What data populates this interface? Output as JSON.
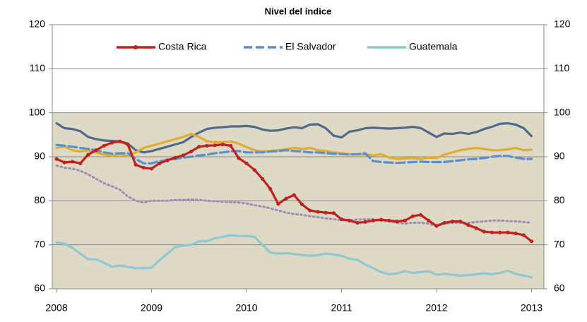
{
  "chart_data": {
    "type": "line",
    "title": "Nivel del índice",
    "x": [
      2008,
      2008.083,
      2008.167,
      2008.25,
      2008.333,
      2008.417,
      2008.5,
      2008.583,
      2008.667,
      2008.75,
      2008.833,
      2008.917,
      2009,
      2009.083,
      2009.167,
      2009.25,
      2009.333,
      2009.417,
      2009.5,
      2009.583,
      2009.667,
      2009.75,
      2009.833,
      2009.917,
      2010,
      2010.083,
      2010.167,
      2010.25,
      2010.333,
      2010.417,
      2010.5,
      2010.583,
      2010.667,
      2010.75,
      2010.833,
      2010.917,
      2011,
      2011.083,
      2011.167,
      2011.25,
      2011.333,
      2011.417,
      2011.5,
      2011.583,
      2011.667,
      2011.75,
      2011.833,
      2011.917,
      2012,
      2012.083,
      2012.167,
      2012.25,
      2012.333,
      2012.417,
      2012.5,
      2012.583,
      2012.667,
      2012.75,
      2012.833,
      2012.917,
      2013
    ],
    "series": [
      {
        "color": "#4f6a8c",
        "values": [
          97.6,
          96.5,
          96.3,
          95.8,
          94.5,
          94,
          93.7,
          93.6,
          93.5,
          93,
          91.5,
          91,
          91.3,
          91.8,
          92.3,
          92.8,
          93.3,
          94.5,
          95.5,
          96.3,
          96.6,
          96.7,
          96.9,
          96.9,
          97,
          96.8,
          96.2,
          95.9,
          96,
          96.4,
          96.7,
          96.5,
          97.3,
          97.4,
          96.5,
          94.8,
          94.4,
          95.7,
          96,
          96.5,
          96.6,
          96.5,
          96.4,
          96.5,
          96.6,
          96.8,
          96.5,
          95.5,
          94.5,
          95.3,
          95.2,
          95.5,
          95.2,
          95.6,
          96.3,
          96.8,
          97.5,
          97.6,
          97.3,
          96.5,
          94.7
        ]
      },
      {
        "color": "#e2ac2f",
        "values": [
          92,
          92.3,
          91.5,
          91.2,
          91.5,
          91,
          90.5,
          90.2,
          90.5,
          90.2,
          91,
          92,
          92.5,
          93,
          93.5,
          94,
          94.5,
          95.2,
          94.5,
          93.5,
          93.3,
          93.3,
          93.5,
          93,
          92.2,
          91.5,
          91.2,
          91.3,
          91.5,
          91.7,
          92,
          91.8,
          92,
          91.5,
          91.3,
          91,
          90.8,
          90.6,
          90.5,
          90.5,
          90.3,
          90.6,
          89.8,
          89.5,
          89.6,
          89.7,
          89.5,
          89.8,
          89.7,
          90.5,
          91,
          91.5,
          91.8,
          92,
          91.8,
          91.5,
          91.5,
          91.7,
          92,
          91.5,
          91.6
        ]
      },
      {
        "color": "#a08cbb",
        "dash": "dotted",
        "values": [
          88,
          87.5,
          87.3,
          86.8,
          86,
          85,
          84,
          83.3,
          82.5,
          81,
          80,
          79.6,
          80,
          80,
          80,
          80.2,
          80.2,
          80.3,
          80.2,
          80,
          79.9,
          79.8,
          79.7,
          79.6,
          79.4,
          79,
          78.7,
          78.3,
          77.8,
          77.3,
          77,
          76.8,
          76.5,
          76.3,
          76,
          75.8,
          75.6,
          75.6,
          75.7,
          75.8,
          75.8,
          75.5,
          75.3,
          75,
          74.8,
          75,
          75,
          74.8,
          74.2,
          74.8,
          75,
          75,
          75,
          75.2,
          75.3,
          75.5,
          75.5,
          75.4,
          75.3,
          75.2,
          75
        ]
      },
      {
        "name": "El Salvador",
        "color": "#5b8fcf",
        "dash": "dashed",
        "values": [
          92.7,
          92.5,
          92.3,
          92,
          91.8,
          91.5,
          91,
          90.7,
          90.8,
          90.8,
          89.5,
          88.5,
          88.5,
          89,
          89.3,
          89.5,
          89.8,
          90,
          90.3,
          90.5,
          90.8,
          91,
          91.2,
          91.3,
          91,
          91,
          91,
          91.2,
          91.3,
          91.5,
          91.3,
          91.2,
          91,
          91,
          90.8,
          90.7,
          90.6,
          90.5,
          90.6,
          90.8,
          89,
          88.8,
          88.7,
          88.6,
          88.7,
          88.8,
          88.9,
          88.8,
          88.8,
          88.8,
          89,
          89.2,
          89.4,
          89.5,
          89.7,
          90,
          90.2,
          90.2,
          89.8,
          89.5,
          89.5
        ]
      },
      {
        "name": "Guatemala",
        "color": "#8fc7d2",
        "values": [
          70.5,
          70.3,
          69.3,
          68,
          66.7,
          66.7,
          65.9,
          65,
          65.3,
          65,
          64.7,
          64.7,
          64.8,
          66.5,
          68,
          69.5,
          69.8,
          70,
          70.8,
          70.8,
          71.5,
          71.8,
          72.2,
          72,
          72,
          71.8,
          70,
          68.2,
          68,
          68.1,
          67.9,
          67.7,
          67.5,
          67.6,
          68,
          67.8,
          67.5,
          66.8,
          66.6,
          65.5,
          64.7,
          63.8,
          63.3,
          63.5,
          64,
          63.6,
          63.8,
          64,
          63.2,
          63.4,
          63.2,
          63,
          63.1,
          63.3,
          63.5,
          63.3,
          63.6,
          64.1,
          63.4,
          63,
          62.6
        ]
      },
      {
        "name": "Costa Rica",
        "color": "#c0201f",
        "marker": "circle",
        "values": [
          89.5,
          88.7,
          88.9,
          88.5,
          90.5,
          91.5,
          92.5,
          93.2,
          93.5,
          92.8,
          88.2,
          87.5,
          87.3,
          88.5,
          89.2,
          89.8,
          90.3,
          91.2,
          92.3,
          92.5,
          92.6,
          92.8,
          92.5,
          89.7,
          88.5,
          87,
          85,
          82.7,
          79.3,
          80.5,
          81.3,
          79.2,
          77.8,
          77.5,
          77.3,
          77.2,
          75.8,
          75.5,
          75,
          75.2,
          75.5,
          75.7,
          75.5,
          75.3,
          75.5,
          76.5,
          76.8,
          75.5,
          74.3,
          75,
          75.3,
          75.3,
          74.5,
          73.8,
          73,
          72.8,
          72.8,
          72.8,
          72.6,
          72.2,
          70.8
        ]
      }
    ],
    "legend_order": [
      5,
      3,
      4
    ],
    "xlim": [
      2007.955,
      2013.13
    ],
    "xticks": [
      2008,
      2009,
      2010,
      2011,
      2012,
      2013
    ],
    "ylim": [
      60,
      120
    ],
    "yticks": [
      60,
      70,
      80,
      90,
      100,
      110,
      120
    ],
    "y2lim": [
      60,
      120
    ],
    "y2ticks": [
      60,
      70,
      80,
      90,
      100,
      110,
      120
    ],
    "shaded_range": [
      60,
      100
    ],
    "shade_color": "#ddd9c4",
    "grid": true
  }
}
